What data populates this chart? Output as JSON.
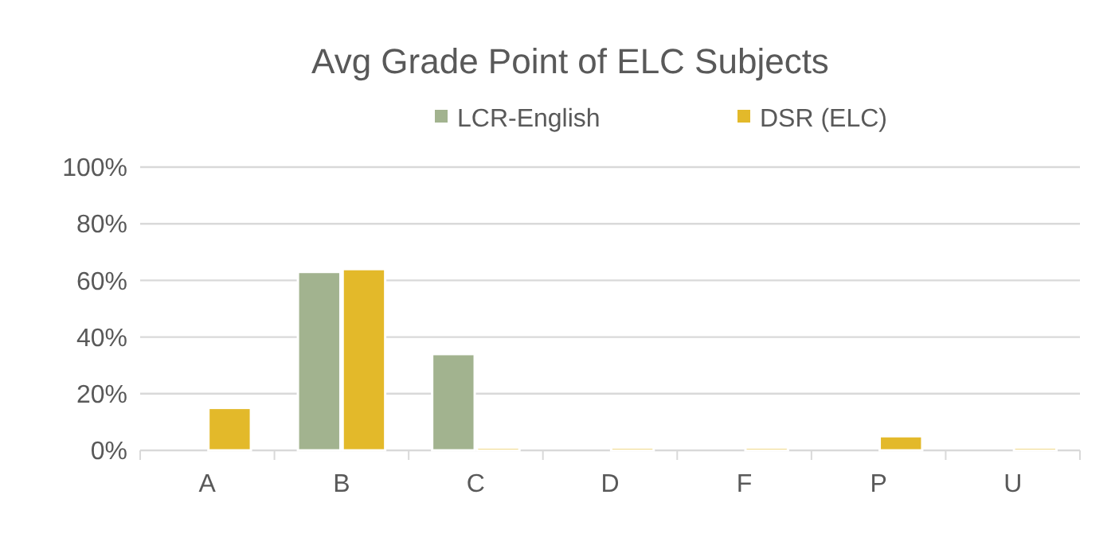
{
  "chart_data": {
    "type": "bar",
    "title": "Avg Grade Point of ELC Subjects",
    "categories": [
      "A",
      "B",
      "C",
      "D",
      "F",
      "P",
      "U"
    ],
    "series": [
      {
        "name": "LCR-English",
        "color": "#a2b38f",
        "values": [
          0,
          63,
          34,
          0,
          0,
          0,
          0
        ]
      },
      {
        "name": "DSR (ELC)",
        "color": "#e3b92a",
        "values": [
          15,
          64,
          1,
          1,
          1,
          5,
          1
        ]
      }
    ],
    "ylim": [
      0,
      100
    ],
    "yticks": [
      {
        "value": 0,
        "label": "0%"
      },
      {
        "value": 20,
        "label": "20%"
      },
      {
        "value": 40,
        "label": "40%"
      },
      {
        "value": 60,
        "label": "60%"
      },
      {
        "value": 80,
        "label": "80%"
      },
      {
        "value": 100,
        "label": "100%"
      }
    ],
    "grid": "y",
    "legend": "top"
  }
}
